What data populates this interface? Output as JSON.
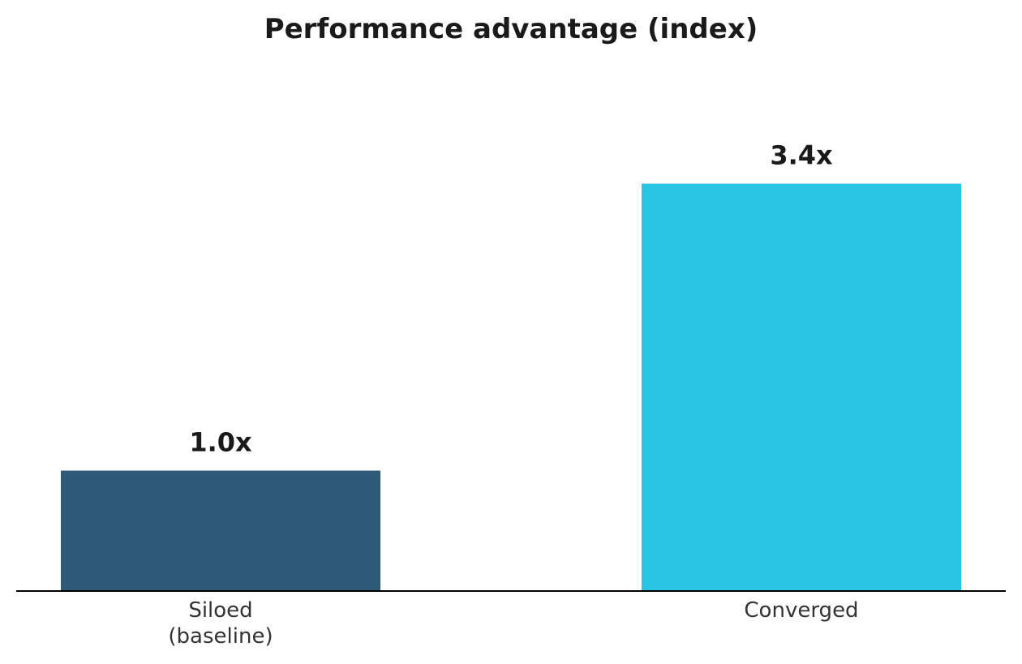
{
  "chart_data": {
    "type": "bar",
    "title": "Performance advantage (index)",
    "xlabel": "",
    "ylabel": "",
    "categories": [
      [
        "Siloed",
        "(baseline)"
      ],
      [
        "Converged"
      ]
    ],
    "values": [
      1.0,
      3.4
    ],
    "data_labels": [
      "1.0x",
      "3.4x"
    ],
    "colors": [
      "#2e5a78",
      "#29c4e6"
    ],
    "ylim": [
      0,
      4.0
    ],
    "grid": false,
    "legend": "none"
  }
}
